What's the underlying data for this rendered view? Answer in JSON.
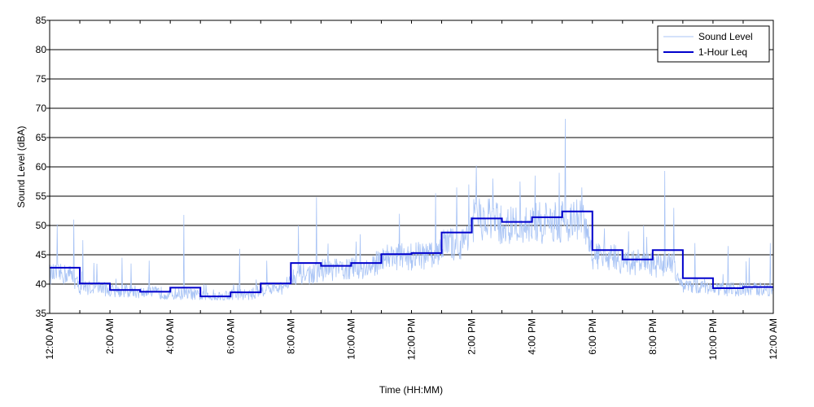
{
  "chart_data": {
    "type": "line",
    "xlabel": "Time (HH:MM)",
    "ylabel": "Sound Level (dBA)",
    "ylim": [
      35,
      85
    ],
    "yticks": [
      35,
      40,
      45,
      50,
      55,
      60,
      65,
      70,
      75,
      80,
      85
    ],
    "xlim_hours": [
      0,
      24
    ],
    "xticks": [
      {
        "hour": 0,
        "label": "12:00 AM"
      },
      {
        "hour": 2,
        "label": "2:00 AM"
      },
      {
        "hour": 4,
        "label": "4:00 AM"
      },
      {
        "hour": 6,
        "label": "6:00 AM"
      },
      {
        "hour": 8,
        "label": "8:00 AM"
      },
      {
        "hour": 10,
        "label": "10:00 AM"
      },
      {
        "hour": 12,
        "label": "12:00 PM"
      },
      {
        "hour": 14,
        "label": "2:00 PM"
      },
      {
        "hour": 16,
        "label": "4:00 PM"
      },
      {
        "hour": 18,
        "label": "6:00 PM"
      },
      {
        "hour": 20,
        "label": "8:00 PM"
      },
      {
        "hour": 22,
        "label": "10:00 PM"
      },
      {
        "hour": 24,
        "label": "12:00 AM"
      }
    ],
    "grid": "horizontal",
    "legend_position": "top-right",
    "series": [
      {
        "name": "Sound Level",
        "color": "#a9c4f5",
        "style": "thin-line",
        "base_by_hour": [
          41.5,
          39.3,
          38.7,
          38.4,
          38.2,
          37.8,
          38.1,
          39.0,
          41.5,
          42.2,
          42.5,
          44.5,
          44.5,
          46.5,
          50.5,
          49.5,
          50.0,
          50.5,
          44.5,
          43.5,
          43.0,
          39.5,
          39.0,
          39.0
        ],
        "spikes": [
          {
            "hour": 0.25,
            "value": 50.2
          },
          {
            "hour": 0.8,
            "value": 51.0
          },
          {
            "hour": 1.1,
            "value": 47.5
          },
          {
            "hour": 2.4,
            "value": 44.5
          },
          {
            "hour": 2.7,
            "value": 43.5
          },
          {
            "hour": 3.3,
            "value": 44.0
          },
          {
            "hour": 4.45,
            "value": 51.8
          },
          {
            "hour": 6.3,
            "value": 46.0
          },
          {
            "hour": 7.2,
            "value": 44.0
          },
          {
            "hour": 8.25,
            "value": 50.0
          },
          {
            "hour": 8.85,
            "value": 54.8
          },
          {
            "hour": 10.3,
            "value": 48.5
          },
          {
            "hour": 11.6,
            "value": 52.0
          },
          {
            "hour": 12.8,
            "value": 55.5
          },
          {
            "hour": 13.5,
            "value": 56.5
          },
          {
            "hour": 13.9,
            "value": 57.0
          },
          {
            "hour": 14.15,
            "value": 60.2
          },
          {
            "hour": 14.7,
            "value": 58.0
          },
          {
            "hour": 15.6,
            "value": 57.5
          },
          {
            "hour": 16.1,
            "value": 58.5
          },
          {
            "hour": 16.9,
            "value": 59.0
          },
          {
            "hour": 17.1,
            "value": 68.2
          },
          {
            "hour": 17.65,
            "value": 56.5
          },
          {
            "hour": 18.4,
            "value": 49.5
          },
          {
            "hour": 19.2,
            "value": 49.0
          },
          {
            "hour": 19.7,
            "value": 50.0
          },
          {
            "hour": 20.4,
            "value": 59.3
          },
          {
            "hour": 20.7,
            "value": 53.0
          },
          {
            "hour": 21.4,
            "value": 47.0
          },
          {
            "hour": 22.5,
            "value": 46.5
          },
          {
            "hour": 23.2,
            "value": 44.5
          },
          {
            "hour": 23.9,
            "value": 47.0
          }
        ]
      },
      {
        "name": "1-Hour Leq",
        "color": "#0000cc",
        "style": "step",
        "values": [
          42.8,
          40.1,
          39.0,
          38.7,
          39.4,
          37.9,
          38.6,
          40.1,
          43.6,
          43.1,
          43.6,
          45.1,
          45.3,
          48.8,
          51.2,
          50.6,
          51.4,
          52.4,
          45.8,
          44.2,
          45.8,
          41.0,
          39.3,
          39.5
        ]
      }
    ]
  }
}
